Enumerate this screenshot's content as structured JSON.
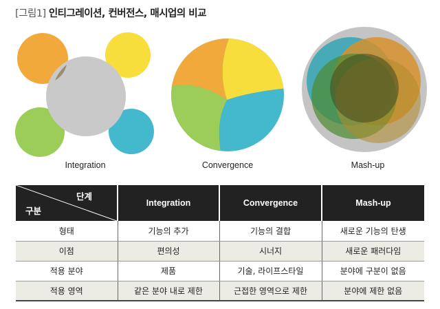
{
  "figure": {
    "title_prefix": "[그림1]",
    "title": "인티그레이션, 컨버전스, 매시업의 비교",
    "captions": [
      "Integration",
      "Convergence",
      "Mash-up"
    ],
    "colors": {
      "orange": "#f2a93b",
      "yellow": "#f8de3c",
      "green": "#9ccd58",
      "blue": "#44b9cd",
      "gray": "#c9c9c9"
    }
  },
  "table": {
    "corner_top": "단계",
    "corner_bottom": "구분",
    "headers": [
      "Integration",
      "Convergence",
      "Mash-up"
    ],
    "rows": [
      {
        "label": "형태",
        "cells": [
          "기능의 추가",
          "기능의 결합",
          "새로운 기능의 탄생"
        ]
      },
      {
        "label": "이점",
        "cells": [
          "편의성",
          "시너지",
          "새로운 패러다임"
        ]
      },
      {
        "label": "적용 분야",
        "cells": [
          "제품",
          "기술, 라이프스타일",
          "분야에 구분이 없음"
        ]
      },
      {
        "label": "적용 영역",
        "cells": [
          "같은 분야 내로 제한",
          "근접한 영역으로 제한",
          "분야에 제한 없음"
        ]
      }
    ]
  }
}
